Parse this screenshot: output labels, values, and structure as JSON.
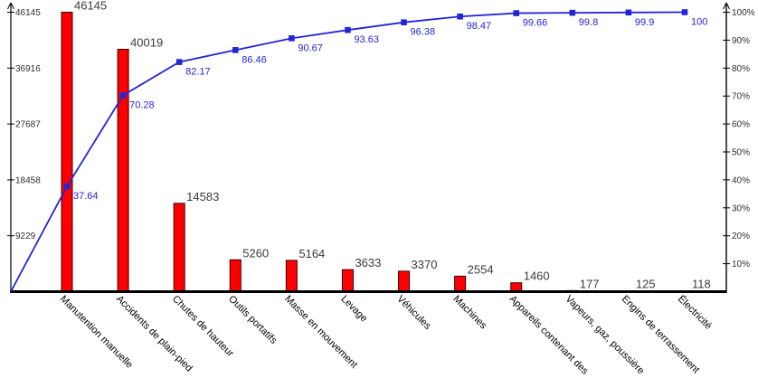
{
  "page": {
    "background": "#ffffff"
  },
  "chart_data": {
    "type": "bar",
    "variant": "pareto",
    "title": "",
    "xlabel": "",
    "ylabel_left": "",
    "ylabel_right": "",
    "grid": false,
    "legend": "none",
    "categories": [
      "Manutention manuelle",
      "Accidents de plain-pied",
      "Chutes de hauteur",
      "Outils portatifs",
      "Masse en mouvement",
      "Levage",
      "Véhicules",
      "Machines",
      "Appareils contenant des",
      "Vapeurs, gaz, poussière",
      "Engins de terrassement",
      "Électricité"
    ],
    "values": [
      46145,
      40019,
      14583,
      5260,
      5164,
      3633,
      3370,
      2554,
      1460,
      177,
      125,
      118
    ],
    "value_labels": [
      "46145",
      "40019",
      "14583",
      "5260",
      "5164",
      "3633",
      "3370",
      "2554",
      "1460",
      "177",
      "125",
      "118"
    ],
    "cumulative_pct": [
      37.64,
      70.28,
      82.17,
      86.46,
      90.67,
      93.63,
      96.38,
      98.47,
      99.66,
      99.8,
      99.9,
      100
    ],
    "cumulative_labels": [
      "37.64",
      "70.28",
      "82.17",
      "86.46",
      "90.67",
      "93.63",
      "96.38",
      "98.47",
      "99.66",
      "99.8",
      "99.9",
      "100"
    ],
    "left_axis_ticks": [
      46145,
      36916,
      27687,
      18458,
      9229
    ],
    "left_axis_range": [
      0,
      46145
    ],
    "right_axis_ticks": [
      100,
      90,
      80,
      70,
      60,
      50,
      40,
      30,
      20,
      10
    ],
    "right_axis_range": [
      0,
      100
    ],
    "right_axis_suffix": "%",
    "colors": {
      "bar": "#ff0000",
      "bar_outline": "#3a0000",
      "line": "#2424d6",
      "axis": "#000000",
      "value_label": "#3a3a3a",
      "tick_label": "#2e2e2e",
      "category_label": "#000000"
    }
  }
}
